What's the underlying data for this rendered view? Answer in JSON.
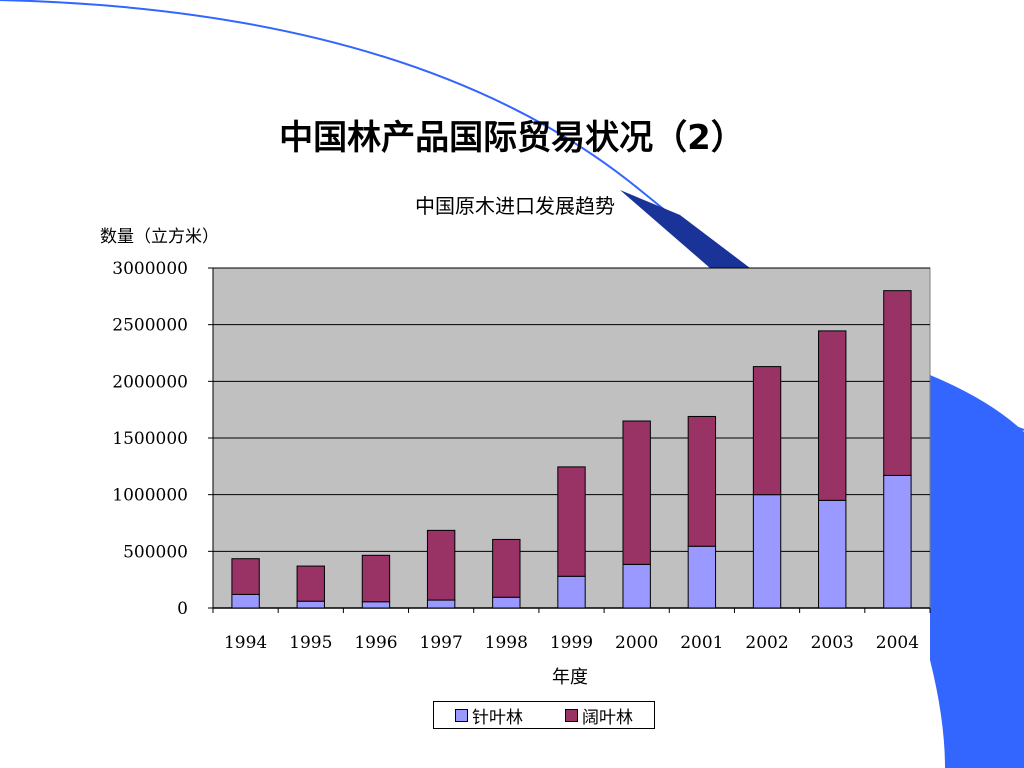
{
  "slide": {
    "title": "中国林产品国际贸易状况（2）"
  },
  "chart_data": {
    "type": "bar",
    "stacked": true,
    "title": "中国原木进口发展趋势",
    "ylabel": "数量（立方米）",
    "xlabel": "年度",
    "categories": [
      "1994",
      "1995",
      "1996",
      "1997",
      "1998",
      "1999",
      "2000",
      "2001",
      "2002",
      "2003",
      "2004"
    ],
    "series": [
      {
        "name": "针叶林",
        "color": "#9999ff",
        "values": [
          120000,
          60000,
          55000,
          70000,
          95000,
          280000,
          385000,
          545000,
          1000000,
          950000,
          1170000
        ]
      },
      {
        "name": "阔叶林",
        "color": "#993366",
        "values": [
          315000,
          310000,
          410000,
          615000,
          510000,
          965000,
          1265000,
          1145000,
          1130000,
          1495000,
          1630000
        ]
      }
    ],
    "ylim": [
      0,
      3000000
    ],
    "yticks": [
      "3000000",
      "2500000",
      "2000000",
      "1500000",
      "1000000",
      "500000",
      "0"
    ],
    "grid": true,
    "plot_background": "#c0c0c0",
    "legend_position": "bottom"
  }
}
